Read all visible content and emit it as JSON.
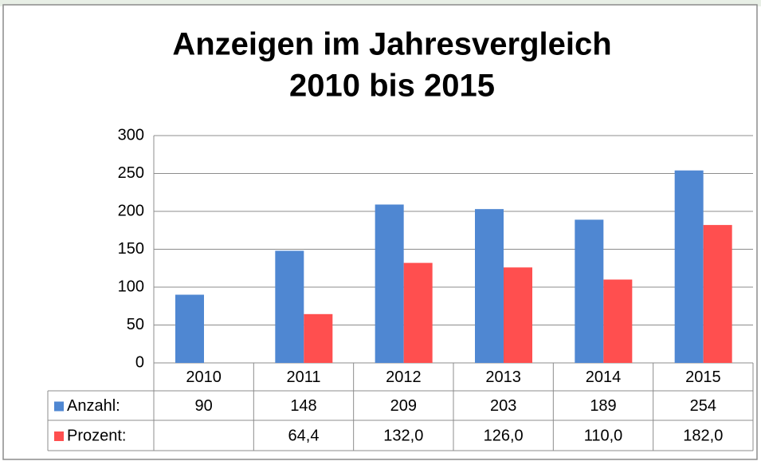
{
  "chart_data": {
    "type": "bar",
    "title": [
      "Anzeigen im Jahresvergleich",
      "2010 bis 2015"
    ],
    "categories": [
      "2010",
      "2011",
      "2012",
      "2013",
      "2014",
      "2015"
    ],
    "series": [
      {
        "name": "Anzahl:",
        "color": "#4f87d2",
        "values": [
          90,
          148,
          209,
          203,
          189,
          254
        ]
      },
      {
        "name": "Prozent:",
        "color": "#ff4f4f",
        "values": [
          null,
          64.4,
          132.0,
          126.0,
          110.0,
          182.0
        ],
        "value_labels": [
          null,
          "64,4",
          "132,0",
          "126,0",
          "110,0",
          "182,0"
        ]
      }
    ],
    "ylim": [
      0,
      300
    ],
    "yticks": [
      0,
      50,
      100,
      150,
      200,
      250,
      300
    ],
    "grid": true,
    "data_table": true
  }
}
